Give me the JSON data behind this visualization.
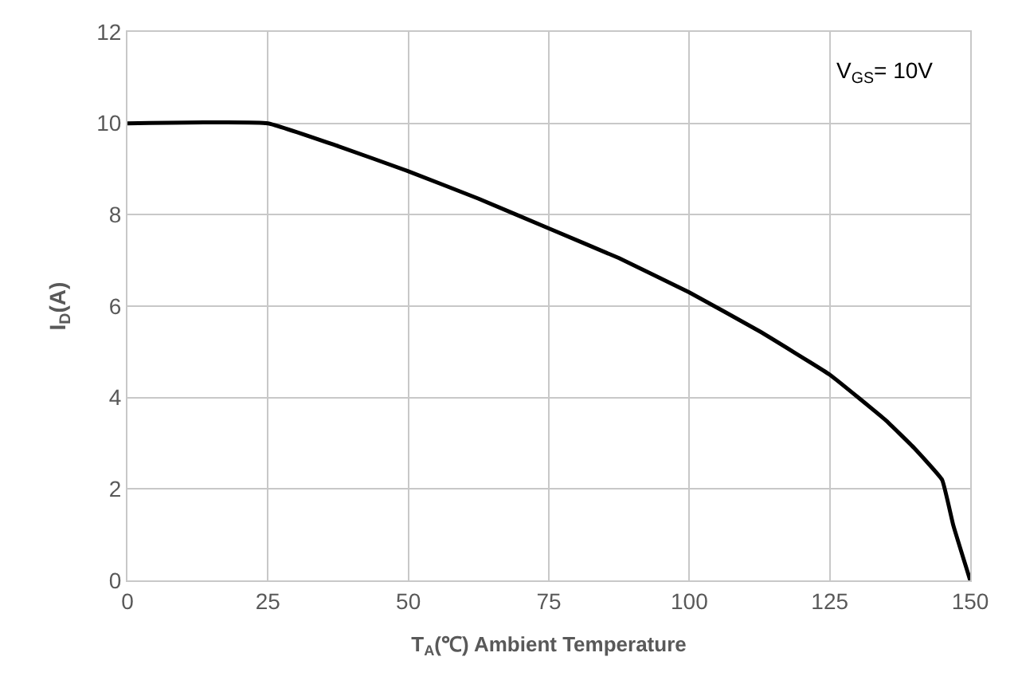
{
  "chart_data": {
    "type": "line",
    "xlabel": "T$_{A}$(℃) Ambient Temperature",
    "ylabel": "I$_{D}$(A)",
    "x": [
      0,
      25,
      37.5,
      50,
      62.5,
      75,
      87.5,
      100,
      112.5,
      125,
      135,
      140,
      145,
      147,
      150
    ],
    "series": [
      {
        "color": "#000000",
        "values": [
          10,
          10,
          9.5,
          8.95,
          8.35,
          7.7,
          7.05,
          6.3,
          5.45,
          4.5,
          3.5,
          2.9,
          2.2,
          1.2,
          0
        ]
      }
    ],
    "xlim": [
      0,
      150
    ],
    "xticks": [
      0,
      25,
      50,
      75,
      100,
      125,
      150
    ],
    "ylim": [
      0,
      12
    ],
    "yticks": [
      0,
      2,
      4,
      6,
      8,
      10,
      12
    ],
    "grid": true,
    "marker": "none",
    "line_style": "solid",
    "legend": false,
    "annotations": [
      "V$_{GS}$= 10V"
    ]
  }
}
